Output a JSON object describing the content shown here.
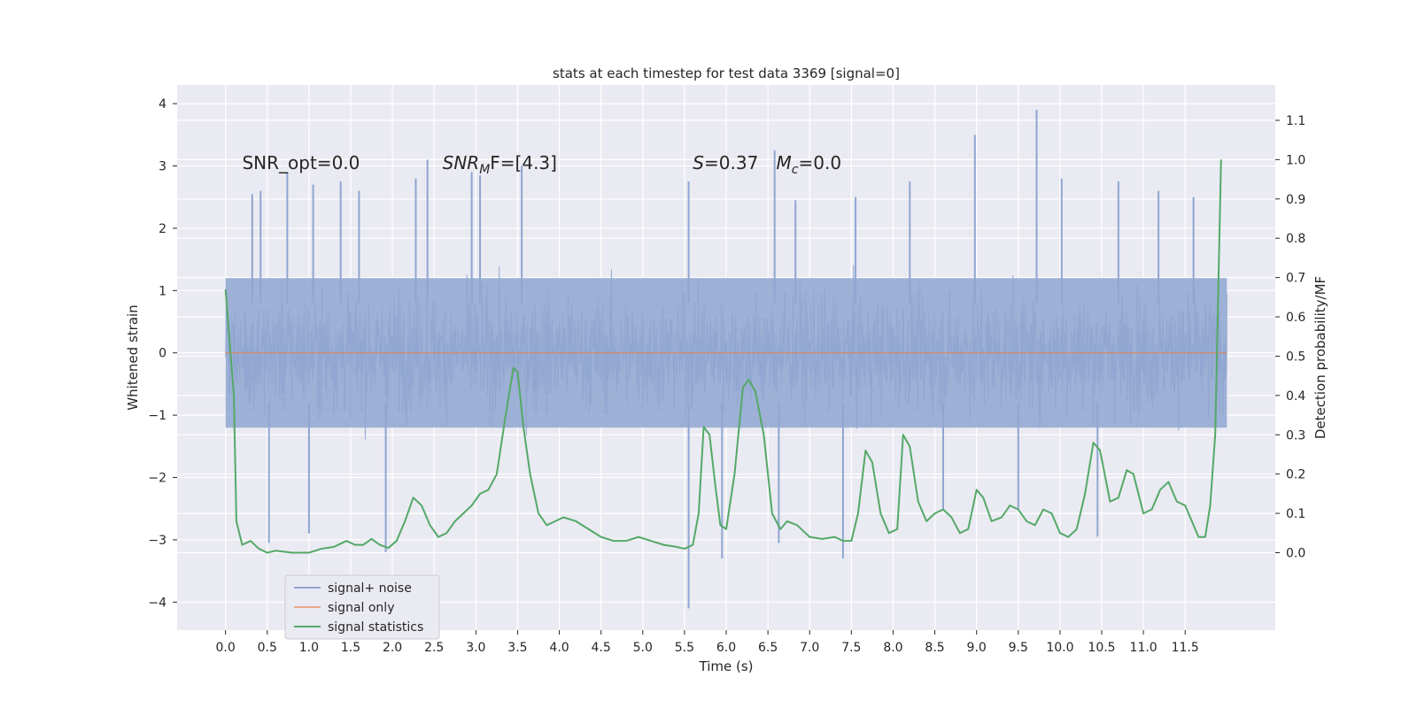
{
  "chart_data": {
    "type": "line",
    "title": "stats at each timestep for test data 3369 [signal=0]",
    "xlabel": "Time (s)",
    "ylabel": "Whitened strain",
    "y2label": "Detection probability/MF",
    "xlim": [
      -0.58,
      12.58
    ],
    "ylim": [
      -4.45,
      4.3
    ],
    "y2lim": [
      -0.197,
      1.19
    ],
    "x_ticks": [
      0.0,
      0.5,
      1.0,
      1.5,
      2.0,
      2.5,
      3.0,
      3.5,
      4.0,
      4.5,
      5.0,
      5.5,
      6.0,
      6.5,
      7.0,
      7.5,
      8.0,
      8.5,
      9.0,
      9.5,
      10.0,
      10.5,
      11.0,
      11.5
    ],
    "x_tick_labels": [
      "0.0",
      "0.5",
      "1.0",
      "1.5",
      "2.0",
      "2.5",
      "3.0",
      "3.5",
      "4.0",
      "4.5",
      "5.0",
      "5.5",
      "6.0",
      "6.5",
      "7.0",
      "7.5",
      "8.0",
      "8.5",
      "9.0",
      "9.5",
      "10.0",
      "10.5",
      "11.0",
      "11.5"
    ],
    "y_ticks": [
      -4,
      -3,
      -2,
      -1,
      0,
      1,
      2,
      3,
      4
    ],
    "y_tick_labels": [
      "−4",
      "−3",
      "−2",
      "−1",
      "0",
      "1",
      "2",
      "3",
      "4"
    ],
    "y2_ticks": [
      0.0,
      0.1,
      0.2,
      0.3,
      0.4,
      0.5,
      0.6,
      0.7,
      0.8,
      0.9,
      1.0,
      1.1
    ],
    "y2_tick_labels": [
      "0.0",
      "0.1",
      "0.2",
      "0.3",
      "0.4",
      "0.5",
      "0.6",
      "0.7",
      "0.8",
      "0.9",
      "1.0",
      "1.1"
    ],
    "grid": true,
    "legend_position": "lower-left",
    "annotations": [
      {
        "x": 0.2,
        "text": "SNR_opt=0.0"
      },
      {
        "x": 2.6,
        "base": "SNR",
        "sub": "M",
        "tail": "F=[4.3]"
      },
      {
        "x": 5.6,
        "base": "S",
        "tail": "=0.37"
      },
      {
        "x": 6.6,
        "base": "M",
        "sub": "c",
        "tail": "=0.0"
      }
    ],
    "annotation_y": 3.05,
    "series": [
      {
        "name": "signal+ noise",
        "axis": "left",
        "color": "#8fa6d0",
        "x_start": 0.0,
        "x_end": 12.0,
        "typical_range": [
          -1.2,
          1.2
        ],
        "spike_peaks": [
          {
            "x": 0.32,
            "y": 2.55
          },
          {
            "x": 0.42,
            "y": 2.6
          },
          {
            "x": 0.74,
            "y": 2.9
          },
          {
            "x": 1.05,
            "y": 2.7
          },
          {
            "x": 1.38,
            "y": 2.75
          },
          {
            "x": 1.6,
            "y": 2.6
          },
          {
            "x": 2.28,
            "y": 2.8
          },
          {
            "x": 2.42,
            "y": 3.1
          },
          {
            "x": 2.95,
            "y": 2.9
          },
          {
            "x": 3.05,
            "y": 2.85
          },
          {
            "x": 3.55,
            "y": 3.0
          },
          {
            "x": 5.55,
            "y": 2.75
          },
          {
            "x": 6.58,
            "y": 3.25
          },
          {
            "x": 6.83,
            "y": 2.45
          },
          {
            "x": 7.55,
            "y": 2.5
          },
          {
            "x": 8.2,
            "y": 2.75
          },
          {
            "x": 8.98,
            "y": 3.5
          },
          {
            "x": 9.72,
            "y": 3.9
          },
          {
            "x": 10.02,
            "y": 2.8
          },
          {
            "x": 10.7,
            "y": 2.75
          },
          {
            "x": 11.18,
            "y": 2.6
          },
          {
            "x": 11.6,
            "y": 2.5
          }
        ],
        "spike_troughs": [
          {
            "x": 0.52,
            "y": -3.05
          },
          {
            "x": 1.0,
            "y": -2.9
          },
          {
            "x": 1.92,
            "y": -3.2
          },
          {
            "x": 5.55,
            "y": -4.1
          },
          {
            "x": 5.95,
            "y": -3.3
          },
          {
            "x": 6.63,
            "y": -3.05
          },
          {
            "x": 7.4,
            "y": -3.3
          },
          {
            "x": 8.6,
            "y": -2.5
          },
          {
            "x": 9.5,
            "y": -2.5
          },
          {
            "x": 10.45,
            "y": -2.95
          }
        ]
      },
      {
        "name": "signal only",
        "axis": "left",
        "color": "#dd8452",
        "x": [
          0.0,
          12.0
        ],
        "y": [
          0.0,
          0.0
        ]
      },
      {
        "name": "signal statistics",
        "axis": "right",
        "color": "#55a868",
        "x": [
          0.0,
          0.1,
          0.13,
          0.2,
          0.3,
          0.4,
          0.5,
          0.6,
          0.8,
          1.0,
          1.15,
          1.3,
          1.45,
          1.55,
          1.65,
          1.75,
          1.85,
          1.95,
          2.05,
          2.15,
          2.25,
          2.35,
          2.45,
          2.55,
          2.65,
          2.75,
          2.85,
          2.95,
          3.05,
          3.15,
          3.25,
          3.35,
          3.45,
          3.5,
          3.57,
          3.65,
          3.75,
          3.85,
          3.95,
          4.05,
          4.2,
          4.35,
          4.5,
          4.65,
          4.8,
          4.95,
          5.1,
          5.25,
          5.4,
          5.5,
          5.6,
          5.67,
          5.73,
          5.8,
          5.87,
          5.93,
          6.0,
          6.1,
          6.2,
          6.27,
          6.35,
          6.45,
          6.55,
          6.65,
          6.73,
          6.85,
          7.0,
          7.15,
          7.3,
          7.4,
          7.5,
          7.58,
          7.67,
          7.75,
          7.85,
          7.95,
          8.05,
          8.12,
          8.2,
          8.3,
          8.4,
          8.5,
          8.6,
          8.7,
          8.8,
          8.9,
          9.0,
          9.08,
          9.18,
          9.3,
          9.4,
          9.5,
          9.6,
          9.7,
          9.8,
          9.9,
          10.0,
          10.1,
          10.2,
          10.3,
          10.4,
          10.48,
          10.6,
          10.7,
          10.8,
          10.88,
          11.0,
          11.1,
          11.2,
          11.3,
          11.4,
          11.5,
          11.6,
          11.66,
          11.74,
          11.8,
          11.86,
          11.93
        ],
        "y": [
          0.67,
          0.4,
          0.08,
          0.02,
          0.03,
          0.01,
          0.0,
          0.005,
          0.0,
          0.0,
          0.01,
          0.015,
          0.03,
          0.02,
          0.02,
          0.035,
          0.02,
          0.012,
          0.03,
          0.08,
          0.14,
          0.12,
          0.07,
          0.04,
          0.05,
          0.08,
          0.1,
          0.12,
          0.15,
          0.16,
          0.2,
          0.34,
          0.47,
          0.46,
          0.32,
          0.2,
          0.1,
          0.07,
          0.08,
          0.09,
          0.08,
          0.06,
          0.04,
          0.03,
          0.03,
          0.04,
          0.03,
          0.02,
          0.015,
          0.01,
          0.02,
          0.1,
          0.32,
          0.3,
          0.17,
          0.07,
          0.06,
          0.2,
          0.42,
          0.44,
          0.41,
          0.3,
          0.1,
          0.06,
          0.08,
          0.07,
          0.04,
          0.035,
          0.04,
          0.03,
          0.03,
          0.1,
          0.26,
          0.23,
          0.1,
          0.05,
          0.06,
          0.3,
          0.27,
          0.13,
          0.08,
          0.1,
          0.11,
          0.09,
          0.05,
          0.06,
          0.16,
          0.14,
          0.08,
          0.09,
          0.12,
          0.11,
          0.08,
          0.07,
          0.11,
          0.1,
          0.05,
          0.04,
          0.06,
          0.15,
          0.28,
          0.26,
          0.13,
          0.14,
          0.21,
          0.2,
          0.1,
          0.11,
          0.16,
          0.18,
          0.13,
          0.12,
          0.07,
          0.04,
          0.04,
          0.12,
          0.3,
          1.0
        ]
      }
    ]
  }
}
